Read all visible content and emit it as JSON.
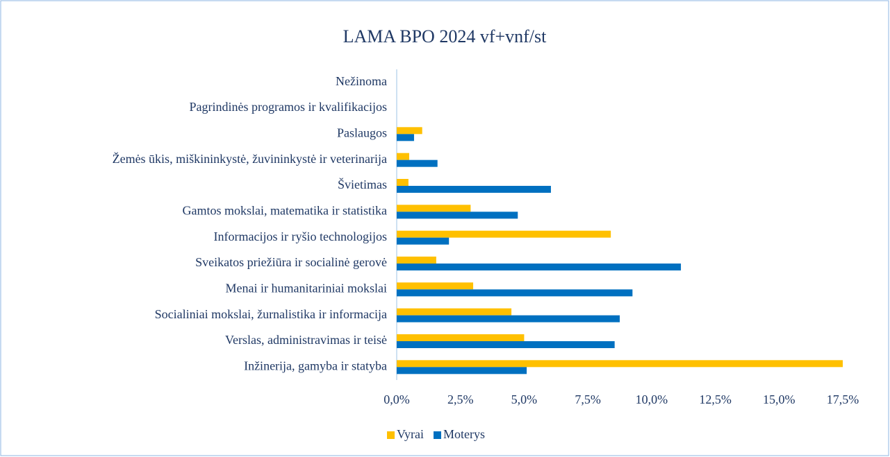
{
  "chart_data": {
    "type": "hbar",
    "title": "LAMA BPO 2024 vf+vnf/st",
    "categories": [
      "Inžinerija, gamyba ir statyba",
      "Verslas, administravimas ir teisė",
      "Socialiniai mokslai, žurnalistika ir informacija",
      "Menai ir humanitariniai mokslai",
      "Sveikatos priežiūra ir socialinė gerovė",
      "Informacijos ir ryšio technologijos",
      "Gamtos mokslai, matematika ir statistika",
      "Švietimas",
      "Žemės ūkis, miškininkystė, žuvininkystė ir veterinarija",
      "Paslaugos",
      "Pagrindinės programos ir kvalifikacijos",
      "Nežinoma"
    ],
    "series": [
      {
        "name": "Vyrai",
        "color": "#ffc000",
        "values": [
          17.5,
          5.0,
          4.5,
          3.0,
          1.55,
          8.4,
          2.9,
          0.46,
          0.49,
          1.0,
          0,
          0
        ]
      },
      {
        "name": "Moterys",
        "color": "#0070c0",
        "values": [
          5.1,
          8.55,
          8.75,
          9.25,
          11.15,
          2.05,
          4.75,
          6.05,
          1.6,
          0.68,
          0,
          0
        ]
      }
    ],
    "xlim": [
      0,
      17.5
    ],
    "xticks": [
      {
        "value": 0,
        "label": "0,0%"
      },
      {
        "value": 2.5,
        "label": "2,5%"
      },
      {
        "value": 5,
        "label": "5,0%"
      },
      {
        "value": 7.5,
        "label": "7,5%"
      },
      {
        "value": 10,
        "label": "10,0%"
      },
      {
        "value": 12.5,
        "label": "12,5%"
      },
      {
        "value": 15,
        "label": "15,0%"
      },
      {
        "value": 17.5,
        "label": "17,5%"
      }
    ],
    "legend": "bottom"
  }
}
